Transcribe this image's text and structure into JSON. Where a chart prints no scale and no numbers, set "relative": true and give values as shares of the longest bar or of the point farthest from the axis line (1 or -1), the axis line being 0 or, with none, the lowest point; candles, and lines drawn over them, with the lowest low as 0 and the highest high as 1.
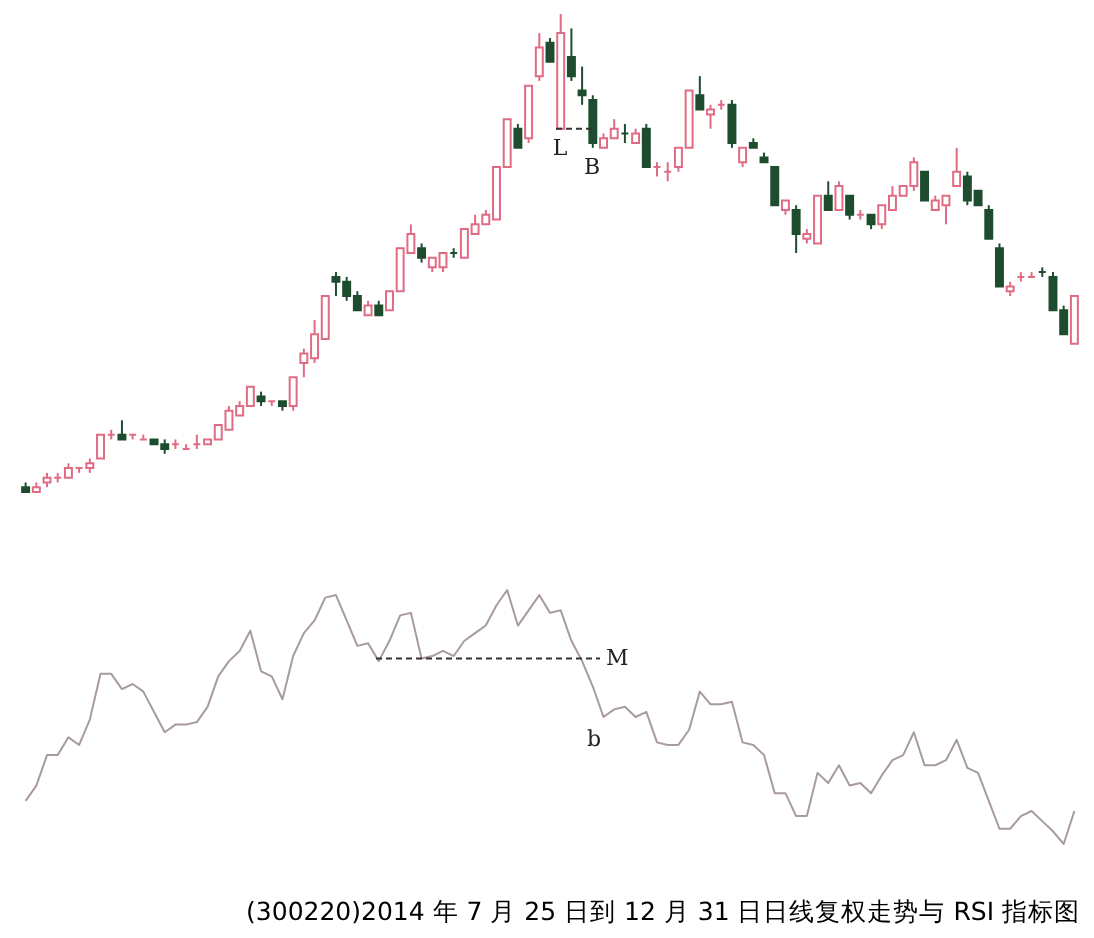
{
  "chart_data": [
    {
      "type": "candlestick",
      "relative": true,
      "tick_labels": false,
      "categories": [
        null,
        null,
        null,
        null,
        null,
        null,
        null,
        null,
        null,
        null,
        null,
        null,
        null,
        null,
        null,
        null,
        null,
        null,
        null,
        null,
        null,
        null,
        null,
        null,
        null,
        null,
        null,
        null,
        null,
        null,
        null,
        null,
        null,
        null,
        null,
        null,
        null,
        null,
        null,
        null,
        null,
        null,
        null,
        null,
        null,
        null,
        null,
        null,
        null,
        null,
        null,
        null,
        null,
        null,
        null,
        null,
        null,
        null,
        null,
        null,
        null,
        null,
        null,
        null,
        null,
        null,
        null,
        null,
        null,
        null,
        null,
        null,
        null,
        null,
        null,
        null,
        null,
        null,
        null,
        null,
        null,
        null,
        null,
        null,
        null,
        null,
        null,
        null,
        null,
        null,
        null,
        null,
        null,
        null,
        null,
        null,
        null,
        null,
        null
      ],
      "ohlc": [
        [
          0.01,
          0.02,
          0,
          0
        ],
        [
          0,
          0.02,
          0,
          0.01
        ],
        [
          0.02,
          0.04,
          0.01,
          0.03
        ],
        [
          0.03,
          0.04,
          0.02,
          0.03
        ],
        [
          0.03,
          0.06,
          0.03,
          0.05
        ],
        [
          0.05,
          0.05,
          0.04,
          0.05
        ],
        [
          0.05,
          0.07,
          0.04,
          0.06
        ],
        [
          0.07,
          0.12,
          0.07,
          0.12
        ],
        [
          0.12,
          0.13,
          0.11,
          0.12
        ],
        [
          0.12,
          0.15,
          0.11,
          0.11
        ],
        [
          0.12,
          0.12,
          0.11,
          0.12
        ],
        [
          0.11,
          0.12,
          0.11,
          0.11
        ],
        [
          0.11,
          0.11,
          0.1,
          0.1
        ],
        [
          0.1,
          0.11,
          0.08,
          0.09
        ],
        [
          0.1,
          0.11,
          0.09,
          0.1
        ],
        [
          0.09,
          0.1,
          0.09,
          0.09
        ],
        [
          0.1,
          0.12,
          0.09,
          0.1
        ],
        [
          0.1,
          0.11,
          0.1,
          0.11
        ],
        [
          0.11,
          0.14,
          0.11,
          0.14
        ],
        [
          0.13,
          0.18,
          0.13,
          0.17
        ],
        [
          0.16,
          0.19,
          0.16,
          0.18
        ],
        [
          0.18,
          0.22,
          0.18,
          0.22
        ],
        [
          0.2,
          0.21,
          0.18,
          0.19
        ],
        [
          0.19,
          0.19,
          0.18,
          0.19
        ],
        [
          0.19,
          0.19,
          0.17,
          0.18
        ],
        [
          0.18,
          0.24,
          0.17,
          0.24
        ],
        [
          0.27,
          0.3,
          0.24,
          0.29
        ],
        [
          0.28,
          0.36,
          0.27,
          0.33
        ],
        [
          0.32,
          0.41,
          0.32,
          0.41
        ],
        [
          0.45,
          0.46,
          0.41,
          0.44
        ],
        [
          0.44,
          0.45,
          0.4,
          0.41
        ],
        [
          0.41,
          0.42,
          0.38,
          0.38
        ],
        [
          0.37,
          0.4,
          0.37,
          0.39
        ],
        [
          0.39,
          0.4,
          0.37,
          0.37
        ],
        [
          0.38,
          0.42,
          0.38,
          0.42
        ],
        [
          0.42,
          0.51,
          0.42,
          0.51
        ],
        [
          0.5,
          0.56,
          0.5,
          0.54
        ],
        [
          0.51,
          0.52,
          0.48,
          0.49
        ],
        [
          0.47,
          0.49,
          0.46,
          0.49
        ],
        [
          0.47,
          0.5,
          0.46,
          0.5
        ],
        [
          0.5,
          0.51,
          0.49,
          0.5
        ],
        [
          0.49,
          0.55,
          0.49,
          0.55
        ],
        [
          0.54,
          0.58,
          0.54,
          0.56
        ],
        [
          0.56,
          0.59,
          0.56,
          0.58
        ],
        [
          0.57,
          0.68,
          0.57,
          0.68
        ],
        [
          0.68,
          0.78,
          0.68,
          0.78
        ],
        [
          0.76,
          0.77,
          0.72,
          0.72
        ],
        [
          0.74,
          0.85,
          0.73,
          0.85
        ],
        [
          0.87,
          0.96,
          0.86,
          0.93
        ],
        [
          0.94,
          0.95,
          0.9,
          0.9
        ],
        [
          0.76,
          1,
          0.76,
          0.96
        ],
        [
          0.91,
          0.97,
          0.86,
          0.87
        ],
        [
          0.84,
          0.89,
          0.81,
          0.83
        ],
        [
          0.82,
          0.83,
          0.72,
          0.73
        ],
        [
          0.72,
          0.75,
          0.72,
          0.74
        ],
        [
          0.74,
          0.78,
          0.74,
          0.76
        ],
        [
          0.75,
          0.77,
          0.73,
          0.75
        ],
        [
          0.73,
          0.76,
          0.73,
          0.75
        ],
        [
          0.76,
          0.77,
          0.68,
          0.68
        ],
        [
          0.68,
          0.69,
          0.66,
          0.68
        ],
        [
          0.67,
          0.69,
          0.65,
          0.67
        ],
        [
          0.68,
          0.72,
          0.67,
          0.72
        ],
        [
          0.72,
          0.84,
          0.72,
          0.84
        ],
        [
          0.83,
          0.87,
          0.8,
          0.8
        ],
        [
          0.79,
          0.81,
          0.76,
          0.8
        ],
        [
          0.81,
          0.82,
          0.8,
          0.81
        ],
        [
          0.81,
          0.82,
          0.72,
          0.73
        ],
        [
          0.69,
          0.72,
          0.68,
          0.72
        ],
        [
          0.73,
          0.74,
          0.72,
          0.72
        ],
        [
          0.7,
          0.71,
          0.69,
          0.69
        ],
        [
          0.68,
          0.68,
          0.6,
          0.6
        ],
        [
          0.59,
          0.61,
          0.58,
          0.61
        ],
        [
          0.59,
          0.6,
          0.5,
          0.54
        ],
        [
          0.53,
          0.55,
          0.52,
          0.54
        ],
        [
          0.52,
          0.62,
          0.52,
          0.62
        ],
        [
          0.62,
          0.65,
          0.59,
          0.59
        ],
        [
          0.59,
          0.65,
          0.59,
          0.64
        ],
        [
          0.62,
          0.62,
          0.57,
          0.58
        ],
        [
          0.58,
          0.59,
          0.57,
          0.58
        ],
        [
          0.58,
          0.58,
          0.55,
          0.56
        ],
        [
          0.56,
          0.6,
          0.55,
          0.6
        ],
        [
          0.59,
          0.64,
          0.59,
          0.62
        ],
        [
          0.62,
          0.64,
          0.62,
          0.64
        ],
        [
          0.64,
          0.7,
          0.63,
          0.69
        ],
        [
          0.67,
          0.67,
          0.61,
          0.61
        ],
        [
          0.59,
          0.62,
          0.59,
          0.61
        ],
        [
          0.6,
          0.62,
          0.56,
          0.62
        ],
        [
          0.64,
          0.72,
          0.64,
          0.67
        ],
        [
          0.66,
          0.67,
          0.6,
          0.61
        ],
        [
          0.63,
          0.63,
          0.6,
          0.6
        ],
        [
          0.59,
          0.6,
          0.53,
          0.53
        ],
        [
          0.51,
          0.52,
          0.43,
          0.43
        ],
        [
          0.42,
          0.44,
          0.41,
          0.43
        ],
        [
          0.45,
          0.46,
          0.44,
          0.45
        ],
        [
          0.45,
          0.46,
          0.45,
          0.45
        ],
        [
          0.46,
          0.47,
          0.45,
          0.46
        ],
        [
          0.45,
          0.46,
          0.38,
          0.38
        ],
        [
          0.38,
          0.39,
          0.33,
          0.33
        ],
        [
          0.31,
          0.41,
          0.31,
          0.41
        ]
      ],
      "colors": [
        "#1d4d2e",
        "#e06c84",
        "#e06c84",
        "#e06c84",
        "#e06c84",
        "#e06c84",
        "#e06c84",
        "#e06c84",
        "#e06c84",
        "#1d4d2e",
        "#e06c84",
        "#e06c84",
        "#1d4d2e",
        "#1d4d2e",
        "#e06c84",
        "#e06c84",
        "#e06c84",
        "#e06c84",
        "#e06c84",
        "#e06c84",
        "#e06c84",
        "#e06c84",
        "#1d4d2e",
        "#e06c84",
        "#1d4d2e",
        "#e06c84",
        "#e06c84",
        "#e06c84",
        "#e06c84",
        "#1d4d2e",
        "#1d4d2e",
        "#1d4d2e",
        "#e06c84",
        "#1d4d2e",
        "#e06c84",
        "#e06c84",
        "#e06c84",
        "#1d4d2e",
        "#e06c84",
        "#e06c84",
        "#1d4d2e",
        "#e06c84",
        "#e06c84",
        "#e06c84",
        "#e06c84",
        "#e06c84",
        "#1d4d2e",
        "#e06c84",
        "#e06c84",
        "#1d4d2e",
        "#e06c84",
        "#1d4d2e",
        "#1d4d2e",
        "#1d4d2e",
        "#e06c84",
        "#e06c84",
        "#1d4d2e",
        "#e06c84",
        "#1d4d2e",
        "#e06c84",
        "#e06c84",
        "#e06c84",
        "#e06c84",
        "#1d4d2e",
        "#e06c84",
        "#e06c84",
        "#1d4d2e",
        "#e06c84",
        "#1d4d2e",
        "#1d4d2e",
        "#1d4d2e",
        "#e06c84",
        "#1d4d2e",
        "#e06c84",
        "#e06c84",
        "#1d4d2e",
        "#e06c84",
        "#1d4d2e",
        "#e06c84",
        "#1d4d2e",
        "#e06c84",
        "#e06c84",
        "#e06c84",
        "#e06c84",
        "#1d4d2e",
        "#e06c84",
        "#e06c84",
        "#e06c84",
        "#1d4d2e",
        "#1d4d2e",
        "#1d4d2e",
        "#1d4d2e",
        "#e06c84",
        "#e06c84",
        "#e06c84",
        "#1d4d2e",
        "#1d4d2e",
        "#1d4d2e",
        "#e06c84"
      ],
      "ref_lines": [
        {
          "axis": "y",
          "value": 0.76,
          "label": "L",
          "line_style": "dashed"
        }
      ],
      "annotations": [
        "B"
      ]
    },
    {
      "type": "line",
      "relative": true,
      "tick_labels": false,
      "title": "(300220)2014 年 7 月 25 日到 12 月 31 日日线复权走势与 RSI 指标图",
      "categories": [
        null,
        null,
        null,
        null,
        null,
        null,
        null,
        null,
        null,
        null,
        null,
        null,
        null,
        null,
        null,
        null,
        null,
        null,
        null,
        null,
        null,
        null,
        null,
        null,
        null,
        null,
        null,
        null,
        null,
        null,
        null,
        null,
        null,
        null,
        null,
        null,
        null,
        null,
        null,
        null,
        null,
        null,
        null,
        null,
        null,
        null,
        null,
        null,
        null,
        null,
        null,
        null,
        null,
        null,
        null,
        null,
        null,
        null,
        null,
        null,
        null,
        null,
        null,
        null,
        null,
        null,
        null,
        null,
        null,
        null,
        null,
        null,
        null,
        null,
        null,
        null,
        null,
        null,
        null,
        null,
        null,
        null,
        null,
        null,
        null,
        null,
        null,
        null,
        null,
        null,
        null,
        null,
        null,
        null,
        null,
        null,
        null,
        null,
        null
      ],
      "color": "#a89aa0",
      "values": [
        0.17,
        0.23,
        0.35,
        0.35,
        0.42,
        0.39,
        0.49,
        0.67,
        0.67,
        0.61,
        0.63,
        0.6,
        0.52,
        0.44,
        0.47,
        0.47,
        0.48,
        0.54,
        0.66,
        0.72,
        0.76,
        0.84,
        0.68,
        0.66,
        0.57,
        0.74,
        0.83,
        0.88,
        0.97,
        0.98,
        0.88,
        0.78,
        0.79,
        0.72,
        0.8,
        0.9,
        0.91,
        0.73,
        0.74,
        0.76,
        0.74,
        0.8,
        0.83,
        0.86,
        0.94,
        1,
        0.86,
        0.92,
        0.98,
        0.91,
        0.92,
        0.8,
        0.72,
        0.62,
        0.5,
        0.53,
        0.54,
        0.5,
        0.52,
        0.4,
        0.39,
        0.39,
        0.45,
        0.6,
        0.55,
        0.55,
        0.56,
        0.4,
        0.39,
        0.35,
        0.2,
        0.2,
        0.11,
        0.11,
        0.28,
        0.24,
        0.31,
        0.23,
        0.24,
        0.2,
        0.27,
        0.33,
        0.35,
        0.44,
        0.31,
        0.31,
        0.33,
        0.41,
        0.3,
        0.28,
        0.17,
        0.06,
        0.06,
        0.11,
        0.13,
        0.09,
        0.05,
        0,
        0.13
      ],
      "ref_lines": [
        {
          "axis": "y",
          "value": 0.73,
          "label": "M",
          "line_style": "dashed"
        }
      ],
      "annotations": [
        "b"
      ]
    }
  ]
}
